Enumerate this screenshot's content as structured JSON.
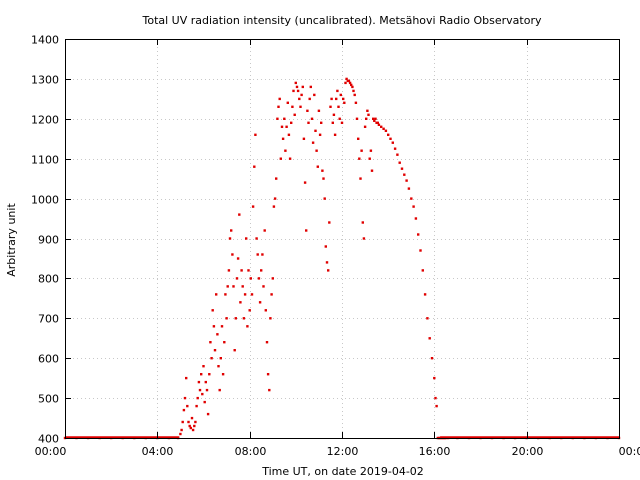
{
  "chart_data": {
    "type": "scatter",
    "title": "Total UV radiation intensity (uncalibrated). Metsähovi Radio Observatory",
    "xlabel": "Time UT, on date 2019-04-02",
    "ylabel": "Arbitrary unit",
    "xlim": [
      0,
      24
    ],
    "ylim": [
      400,
      1400
    ],
    "x_ticks": [
      0,
      4,
      8,
      12,
      16,
      20,
      24
    ],
    "x_tick_labels": [
      "00:00",
      "04:00",
      "08:00",
      "12:00",
      "16:00",
      "20:00",
      "00:00"
    ],
    "y_ticks": [
      400,
      500,
      600,
      700,
      800,
      900,
      1000,
      1100,
      1200,
      1300,
      1400
    ],
    "y_tick_labels": [
      "400",
      "500",
      "600",
      "700",
      "800",
      "900",
      "1000",
      "1100",
      "1200",
      "1300",
      "1400"
    ],
    "grid": true,
    "marker_color": "#e00000",
    "series": [
      {
        "x": [
          0.0,
          0.5,
          1.0,
          1.5,
          2.0,
          2.5,
          3.0,
          3.5,
          4.0,
          4.5,
          4.9,
          5.0,
          5.05,
          5.1,
          5.15,
          5.2,
          5.25,
          5.3,
          5.35,
          5.4,
          5.45,
          5.5,
          5.55,
          5.6,
          5.65,
          5.7,
          5.75,
          5.8,
          5.85,
          5.9,
          5.95,
          6.0,
          6.05,
          6.1,
          6.15,
          6.2,
          6.25,
          6.3,
          6.35,
          6.4,
          6.45,
          6.5,
          6.55,
          6.6,
          6.65,
          6.7,
          6.75,
          6.8,
          6.85,
          6.9,
          6.95,
          7.0,
          7.05,
          7.1,
          7.15,
          7.2,
          7.25,
          7.3,
          7.35,
          7.4,
          7.45,
          7.5,
          7.55,
          7.6,
          7.65,
          7.7,
          7.75,
          7.8,
          7.85,
          7.9,
          7.95,
          8.0,
          8.05,
          8.1,
          8.15,
          8.2,
          8.25,
          8.3,
          8.35,
          8.4,
          8.45,
          8.5,
          8.55,
          8.6,
          8.65,
          8.7,
          8.75,
          8.8,
          8.85,
          8.9,
          8.95,
          9.0,
          9.05,
          9.1,
          9.15,
          9.2,
          9.25,
          9.3,
          9.35,
          9.4,
          9.45,
          9.5,
          9.55,
          9.6,
          9.65,
          9.7,
          9.75,
          9.8,
          9.85,
          9.9,
          9.95,
          10.0,
          10.05,
          10.1,
          10.15,
          10.2,
          10.25,
          10.3,
          10.35,
          10.4,
          10.45,
          10.5,
          10.55,
          10.6,
          10.65,
          10.7,
          10.75,
          10.8,
          10.85,
          10.9,
          10.95,
          11.0,
          11.05,
          11.1,
          11.15,
          11.2,
          11.25,
          11.3,
          11.35,
          11.4,
          11.45,
          11.5,
          11.55,
          11.6,
          11.65,
          11.7,
          11.75,
          11.8,
          11.85,
          11.9,
          11.95,
          12.0,
          12.05,
          12.1,
          12.15,
          12.2,
          12.25,
          12.3,
          12.35,
          12.4,
          12.45,
          12.5,
          12.55,
          12.6,
          12.65,
          12.7,
          12.75,
          12.8,
          12.85,
          12.9,
          12.95,
          13.0,
          13.05,
          13.1,
          13.15,
          13.2,
          13.25,
          13.3,
          13.35,
          13.4,
          13.45,
          13.5,
          13.55,
          13.6,
          13.7,
          13.8,
          13.9,
          14.0,
          14.1,
          14.2,
          14.3,
          14.4,
          14.5,
          14.6,
          14.7,
          14.8,
          14.9,
          15.0,
          15.1,
          15.2,
          15.3,
          15.4,
          15.5,
          15.6,
          15.7,
          15.8,
          15.9,
          16.0,
          16.05,
          16.1,
          16.15,
          16.2,
          16.25,
          16.3,
          16.35,
          16.4,
          16.45,
          16.5,
          16.6,
          17.0,
          17.5,
          18.0,
          18.5,
          19.0,
          19.5,
          20.0,
          20.5,
          21.0,
          21.5,
          22.0,
          22.5,
          23.0,
          23.5,
          24.0
        ],
        "y": [
          400,
          400,
          400,
          400,
          400,
          400,
          400,
          400,
          400,
          400,
          400,
          410,
          420,
          440,
          470,
          500,
          550,
          480,
          440,
          430,
          425,
          450,
          420,
          430,
          440,
          480,
          500,
          540,
          520,
          560,
          510,
          580,
          490,
          540,
          520,
          460,
          560,
          640,
          600,
          720,
          680,
          620,
          760,
          660,
          580,
          520,
          600,
          680,
          560,
          640,
          760,
          700,
          780,
          820,
          900,
          920,
          860,
          780,
          620,
          700,
          800,
          850,
          960,
          740,
          820,
          780,
          700,
          760,
          900,
          680,
          820,
          720,
          800,
          760,
          980,
          1080,
          1160,
          900,
          860,
          800,
          740,
          820,
          860,
          780,
          920,
          720,
          640,
          560,
          520,
          700,
          760,
          800,
          980,
          1000,
          1050,
          1200,
          1230,
          1250,
          1100,
          1180,
          1150,
          1200,
          1120,
          1180,
          1240,
          1160,
          1100,
          1190,
          1230,
          1270,
          1210,
          1290,
          1280,
          1270,
          1250,
          1230,
          1260,
          1280,
          1150,
          1040,
          920,
          1220,
          1190,
          1250,
          1280,
          1200,
          1140,
          1260,
          1170,
          1120,
          1080,
          1220,
          1160,
          1190,
          1070,
          1050,
          1000,
          880,
          840,
          820,
          940,
          1230,
          1250,
          1190,
          1210,
          1160,
          1250,
          1270,
          1230,
          1200,
          1260,
          1190,
          1250,
          1240,
          1290,
          1300,
          1295,
          1295,
          1290,
          1285,
          1280,
          1270,
          1260,
          1240,
          1200,
          1150,
          1100,
          1050,
          1120,
          940,
          900,
          1180,
          1200,
          1220,
          1210,
          1100,
          1120,
          1070,
          1200,
          1195,
          1200,
          1190,
          1190,
          1185,
          1180,
          1175,
          1170,
          1160,
          1150,
          1140,
          1125,
          1110,
          1090,
          1075,
          1060,
          1045,
          1025,
          1000,
          980,
          950,
          910,
          870,
          820,
          760,
          700,
          650,
          600,
          550,
          500,
          480,
          400,
          400,
          400,
          400,
          400,
          400,
          400,
          400,
          400,
          400,
          400,
          400,
          400,
          400,
          400,
          400,
          400,
          400,
          400,
          400,
          400,
          400,
          400,
          400
        ]
      }
    ]
  }
}
